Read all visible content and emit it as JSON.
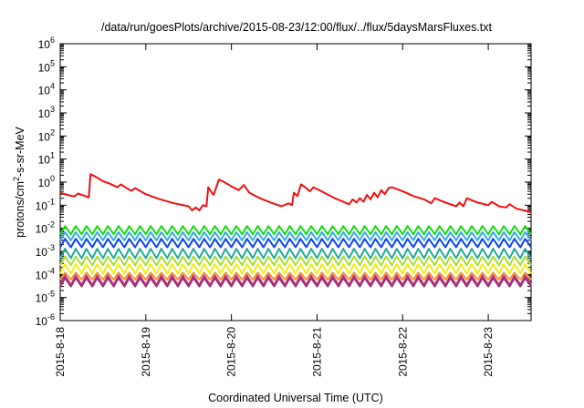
{
  "chart_data": {
    "type": "line",
    "title": "/data/run/goesPlots/archive/2015-08-23/12:00/flux/../flux/5daysMarsFluxes.txt",
    "xlabel": "Coordinated Universal Time (UTC)",
    "ylabel": {
      "prefix": "protons/cm",
      "sup": "2",
      "suffix": "-s-sr-MeV"
    },
    "yscale": "log",
    "ylim": [
      1e-06,
      1000000.0
    ],
    "y_ticks": [
      {
        "value": 1e-06,
        "base": "10",
        "exp": "-6"
      },
      {
        "value": 1e-05,
        "base": "10",
        "exp": "-5"
      },
      {
        "value": 0.0001,
        "base": "10",
        "exp": "-4"
      },
      {
        "value": 0.001,
        "base": "10",
        "exp": "-3"
      },
      {
        "value": 0.01,
        "base": "10",
        "exp": "-2"
      },
      {
        "value": 0.1,
        "base": "10",
        "exp": "-1"
      },
      {
        "value": 1,
        "base": "10",
        "exp": "0"
      },
      {
        "value": 10,
        "base": "10",
        "exp": "1"
      },
      {
        "value": 100,
        "base": "10",
        "exp": "2"
      },
      {
        "value": 1000,
        "base": "10",
        "exp": "3"
      },
      {
        "value": 10000,
        "base": "10",
        "exp": "4"
      },
      {
        "value": 100000,
        "base": "10",
        "exp": "5"
      },
      {
        "value": 1000000,
        "base": "10",
        "exp": "6"
      }
    ],
    "xlim": [
      "2015-08-18T00:00",
      "2015-08-23T12:00"
    ],
    "x_ticks": [
      {
        "value": "2015-08-18T00:00",
        "label": "2015-8-18"
      },
      {
        "value": "2015-08-19T00:00",
        "label": "2015-8-19"
      },
      {
        "value": "2015-08-20T00:00",
        "label": "2015-8-20"
      },
      {
        "value": "2015-08-21T00:00",
        "label": "2015-8-21"
      },
      {
        "value": "2015-08-22T00:00",
        "label": "2015-8-22"
      },
      {
        "value": "2015-08-23T00:00",
        "label": "2015-8-23"
      }
    ],
    "grid": false,
    "legend": "none",
    "series": [
      {
        "color": "#ee1111",
        "points": [
          [
            "2015-08-18T00:00",
            0.35
          ],
          [
            "2015-08-18T02:00",
            0.28
          ],
          [
            "2015-08-18T04:00",
            0.24
          ],
          [
            "2015-08-18T05:00",
            0.32
          ],
          [
            "2015-08-18T07:00",
            0.25
          ],
          [
            "2015-08-18T08:00",
            0.22
          ],
          [
            "2015-08-18T08:30",
            2.2
          ],
          [
            "2015-08-18T10:00",
            1.7
          ],
          [
            "2015-08-18T12:00",
            1.1
          ],
          [
            "2015-08-18T14:00",
            0.85
          ],
          [
            "2015-08-18T16:00",
            0.6
          ],
          [
            "2015-08-18T17:00",
            0.8
          ],
          [
            "2015-08-18T19:00",
            0.5
          ],
          [
            "2015-08-18T20:00",
            0.42
          ],
          [
            "2015-08-18T21:00",
            0.55
          ],
          [
            "2015-08-19T00:00",
            0.3
          ],
          [
            "2015-08-19T04:00",
            0.18
          ],
          [
            "2015-08-19T08:00",
            0.12
          ],
          [
            "2015-08-19T12:00",
            0.09
          ],
          [
            "2015-08-19T13:00",
            0.06
          ],
          [
            "2015-08-19T14:00",
            0.08
          ],
          [
            "2015-08-19T15:00",
            0.06
          ],
          [
            "2015-08-19T16:00",
            0.1
          ],
          [
            "2015-08-19T17:00",
            0.09
          ],
          [
            "2015-08-19T17:30",
            0.6
          ],
          [
            "2015-08-19T18:30",
            0.35
          ],
          [
            "2015-08-19T19:00",
            0.28
          ],
          [
            "2015-08-19T20:30",
            1.3
          ],
          [
            "2015-08-19T22:00",
            1.0
          ],
          [
            "2015-08-20T00:00",
            0.65
          ],
          [
            "2015-08-20T02:00",
            0.45
          ],
          [
            "2015-08-20T03:30",
            0.75
          ],
          [
            "2015-08-20T05:00",
            0.35
          ],
          [
            "2015-08-20T08:00",
            0.2
          ],
          [
            "2015-08-20T11:00",
            0.13
          ],
          [
            "2015-08-20T14:00",
            0.09
          ],
          [
            "2015-08-20T16:00",
            0.12
          ],
          [
            "2015-08-20T17:00",
            0.1
          ],
          [
            "2015-08-20T17:30",
            0.35
          ],
          [
            "2015-08-20T18:30",
            0.25
          ],
          [
            "2015-08-20T19:30",
            0.8
          ],
          [
            "2015-08-20T21:00",
            0.55
          ],
          [
            "2015-08-20T22:00",
            0.4
          ],
          [
            "2015-08-20T23:00",
            0.6
          ],
          [
            "2015-08-21T02:00",
            0.35
          ],
          [
            "2015-08-21T05:00",
            0.2
          ],
          [
            "2015-08-21T09:00",
            0.11
          ],
          [
            "2015-08-21T10:00",
            0.18
          ],
          [
            "2015-08-21T11:00",
            0.13
          ],
          [
            "2015-08-21T12:00",
            0.2
          ],
          [
            "2015-08-21T13:00",
            0.14
          ],
          [
            "2015-08-21T14:00",
            0.28
          ],
          [
            "2015-08-21T15:00",
            0.18
          ],
          [
            "2015-08-21T16:00",
            0.35
          ],
          [
            "2015-08-21T17:00",
            0.22
          ],
          [
            "2015-08-21T18:00",
            0.45
          ],
          [
            "2015-08-21T19:00",
            0.3
          ],
          [
            "2015-08-21T20:00",
            0.55
          ],
          [
            "2015-08-21T21:00",
            0.6
          ],
          [
            "2015-08-22T00:00",
            0.4
          ],
          [
            "2015-08-22T03:00",
            0.25
          ],
          [
            "2015-08-22T06:00",
            0.18
          ],
          [
            "2015-08-22T08:00",
            0.12
          ],
          [
            "2015-08-22T09:00",
            0.2
          ],
          [
            "2015-08-22T12:00",
            0.13
          ],
          [
            "2015-08-22T15:00",
            0.09
          ],
          [
            "2015-08-22T16:00",
            0.13
          ],
          [
            "2015-08-22T17:00",
            0.09
          ],
          [
            "2015-08-22T18:00",
            0.2
          ],
          [
            "2015-08-22T21:00",
            0.13
          ],
          [
            "2015-08-23T00:00",
            0.1
          ],
          [
            "2015-08-23T01:00",
            0.14
          ],
          [
            "2015-08-23T03:00",
            0.09
          ],
          [
            "2015-08-23T05:00",
            0.08
          ],
          [
            "2015-08-23T06:00",
            0.11
          ],
          [
            "2015-08-23T08:00",
            0.07
          ],
          [
            "2015-08-23T10:00",
            0.06
          ],
          [
            "2015-08-23T12:00",
            0.05
          ]
        ]
      },
      {
        "color": "#11dd11",
        "peak": 0.0125,
        "trough": 0.0055,
        "tooth_hours": 3
      },
      {
        "color": "#33aaee",
        "peak": 0.0068,
        "trough": 0.003,
        "tooth_hours": 3
      },
      {
        "color": "#1144ee",
        "peak": 0.0035,
        "trough": 0.0015,
        "tooth_hours": 3
      },
      {
        "color": "#22aa99",
        "peak": 0.0013,
        "trough": 0.0005,
        "tooth_hours": 3
      },
      {
        "color": "#aadd33",
        "peak": 0.0006,
        "trough": 0.00025,
        "tooth_hours": 3
      },
      {
        "color": "#eeee11",
        "peak": 0.00028,
        "trough": 0.00011,
        "tooth_hours": 3
      },
      {
        "color": "#ee9933",
        "peak": 0.00012,
        "trough": 6e-05,
        "tooth_hours": 3
      },
      {
        "color": "#cc3388",
        "peak": 9e-05,
        "trough": 3.5e-05,
        "tooth_hours": 3
      },
      {
        "color": "#993377",
        "peak": 7e-05,
        "trough": 3e-05,
        "tooth_hours": 3
      }
    ]
  }
}
